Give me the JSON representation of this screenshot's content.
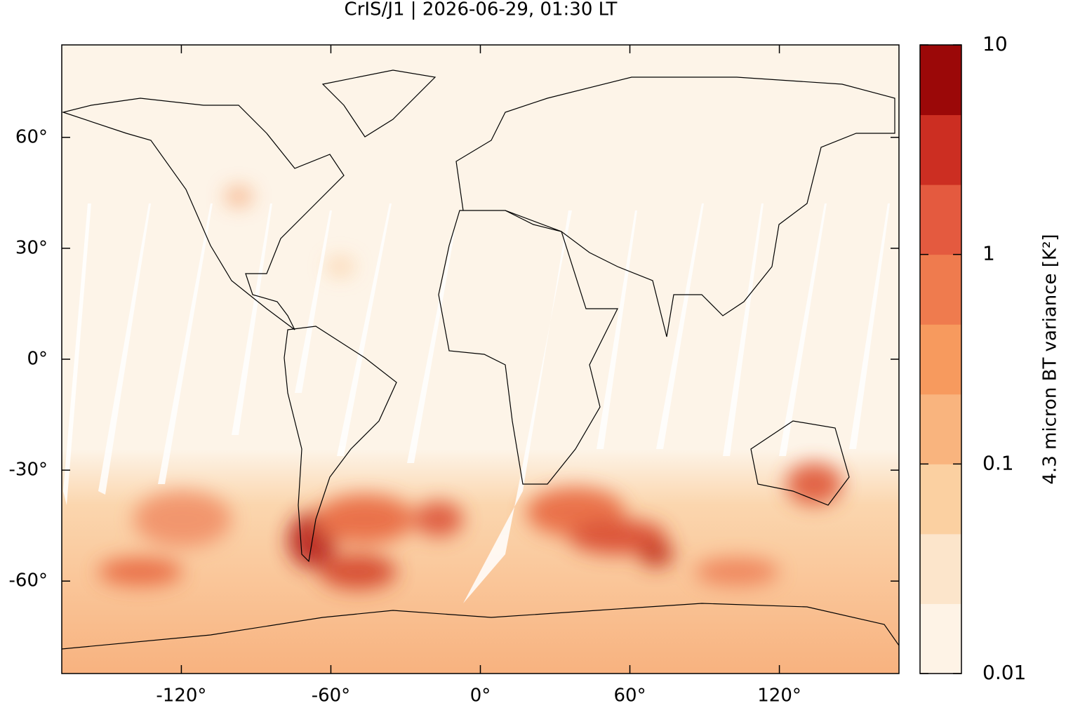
{
  "chart_data": {
    "type": "map",
    "title": "CrIS/J1 | 2026-06-29, 01:30 LT",
    "xlim": [
      -168,
      168
    ],
    "ylim": [
      -85,
      85
    ],
    "xticks": [
      {
        "value": -120,
        "label": "-120°"
      },
      {
        "value": -60,
        "label": "-60°"
      },
      {
        "value": 0,
        "label": "0°"
      },
      {
        "value": 60,
        "label": "60°"
      },
      {
        "value": 120,
        "label": "120°"
      }
    ],
    "yticks": [
      {
        "value": -60,
        "label": "-60°"
      },
      {
        "value": -30,
        "label": "-30°"
      },
      {
        "value": 0,
        "label": "0°"
      },
      {
        "value": 30,
        "label": "30°"
      },
      {
        "value": 60,
        "label": "60°"
      }
    ],
    "colorbar": {
      "label": "4.3 micron BT variance [K²]",
      "scale": "log",
      "lim": [
        0.01,
        10
      ],
      "ticks": [
        0.01,
        0.1,
        1,
        10
      ],
      "colors": [
        "#fef3e6",
        "#fce5cb",
        "#fbd0a1",
        "#f9b47e",
        "#f79a5e",
        "#ef7b4e",
        "#e45a3f",
        "#cc2e22",
        "#9b0808"
      ]
    }
  }
}
